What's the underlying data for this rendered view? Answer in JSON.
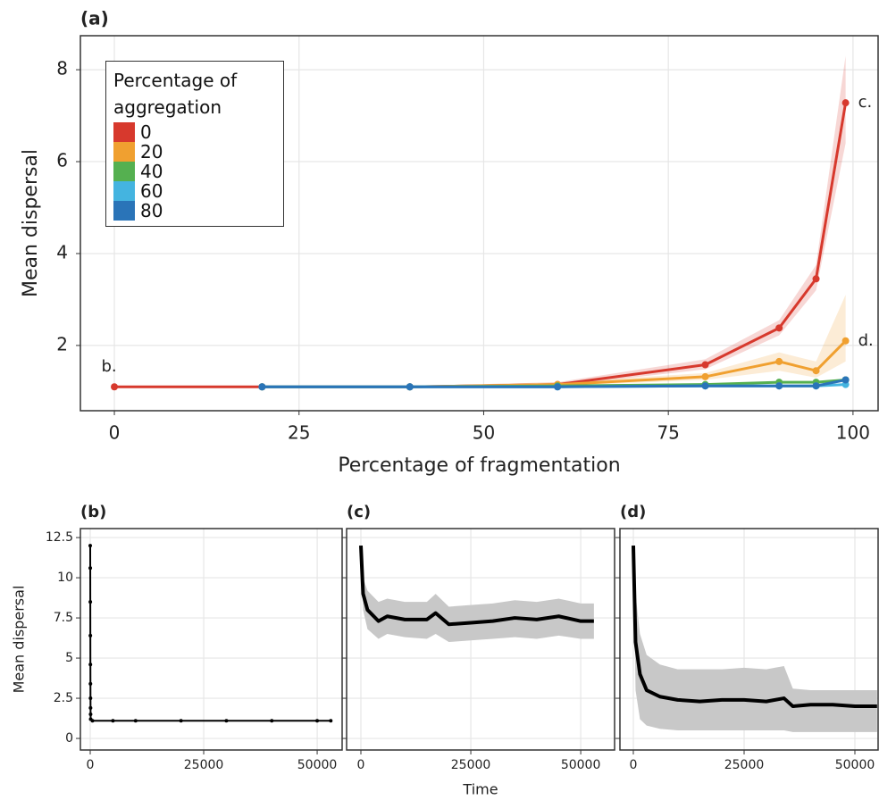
{
  "chart_data": [
    {
      "type": "line",
      "title": "(a)",
      "x_label": "Percentage of fragmentation",
      "y_label": "Mean dispersal",
      "x": [
        0,
        20,
        40,
        60,
        80,
        90,
        95,
        99
      ],
      "xlim": [
        -4.6,
        103.4
      ],
      "ylim": [
        0.58,
        8.74
      ],
      "xticks": [
        0,
        25,
        50,
        75,
        100
      ],
      "yticks": [
        2,
        4,
        6,
        8
      ],
      "grid": true,
      "legend": {
        "title": "Percentage of aggregation",
        "corner": "upper left"
      },
      "series": [
        {
          "name": "0",
          "color": "#d7392d",
          "values": [
            1.1,
            1.1,
            1.1,
            1.15,
            1.58,
            2.38,
            3.45,
            7.28
          ],
          "lower": [
            1.08,
            1.08,
            1.08,
            1.12,
            1.48,
            2.22,
            3.2,
            6.4
          ],
          "upper": [
            1.12,
            1.12,
            1.12,
            1.2,
            1.7,
            2.55,
            3.75,
            8.3
          ]
        },
        {
          "name": "20",
          "color": "#f0a030",
          "values": [
            null,
            1.1,
            1.1,
            1.15,
            1.32,
            1.65,
            1.45,
            2.1
          ],
          "lower": [
            null,
            1.08,
            1.08,
            1.12,
            1.25,
            1.45,
            1.3,
            1.65
          ],
          "upper": [
            null,
            1.12,
            1.12,
            1.2,
            1.4,
            1.85,
            1.65,
            3.1
          ]
        },
        {
          "name": "40",
          "color": "#55b050",
          "values": [
            null,
            1.1,
            1.1,
            1.12,
            1.15,
            1.2,
            1.2,
            1.25
          ]
        },
        {
          "name": "60",
          "color": "#44b4e0",
          "values": [
            null,
            1.1,
            1.1,
            1.1,
            1.12,
            1.12,
            1.12,
            1.15
          ]
        },
        {
          "name": "80",
          "color": "#2a74b8",
          "values": [
            null,
            1.1,
            1.1,
            1.1,
            1.12,
            1.12,
            1.12,
            1.25
          ]
        }
      ],
      "annotations": [
        "b.",
        "c.",
        "d."
      ]
    },
    {
      "type": "line",
      "title": "(b)",
      "y_label": "Mean dispersal",
      "color": "#000000",
      "markers": true,
      "x": [
        0,
        10,
        20,
        30,
        40,
        50,
        60,
        70,
        80,
        100,
        500,
        5000,
        10000,
        20000,
        30000,
        40000,
        50000,
        53000
      ],
      "values": [
        12,
        10.6,
        8.5,
        6.4,
        4.6,
        3.4,
        2.5,
        1.9,
        1.5,
        1.2,
        1.1,
        1.1,
        1.1,
        1.1,
        1.1,
        1.1,
        1.1,
        1.1
      ],
      "xlim": [
        -2165,
        55500
      ],
      "ylim": [
        -0.72,
        13.06
      ],
      "xticks": [
        0,
        25000,
        50000
      ],
      "yticks": [
        0,
        2.5,
        5,
        7.5,
        10,
        12.5
      ],
      "grid": true
    },
    {
      "type": "line",
      "title": "(c)",
      "x_label": "Time",
      "color": "#000000",
      "band_color": "#c8c8c8",
      "x": [
        0,
        500,
        1500,
        4000,
        6000,
        10000,
        15000,
        17000,
        20000,
        25000,
        30000,
        35000,
        40000,
        45000,
        50000,
        53000
      ],
      "values": [
        12,
        9,
        8,
        7.3,
        7.6,
        7.4,
        7.4,
        7.8,
        7.1,
        7.2,
        7.3,
        7.5,
        7.4,
        7.6,
        7.3,
        7.3
      ],
      "lower": [
        12,
        8,
        6.8,
        6.2,
        6.5,
        6.3,
        6.2,
        6.5,
        6.0,
        6.1,
        6.2,
        6.3,
        6.2,
        6.4,
        6.2,
        6.2
      ],
      "upper": [
        12,
        10,
        9.2,
        8.5,
        8.7,
        8.5,
        8.5,
        9.0,
        8.2,
        8.3,
        8.4,
        8.6,
        8.5,
        8.7,
        8.4,
        8.4
      ],
      "xlim": [
        -3250,
        57700
      ],
      "ylim": [
        -0.72,
        13.06
      ],
      "xticks": [
        0,
        25000,
        50000
      ],
      "yticks": [
        0,
        2.5,
        5,
        7.5,
        10,
        12.5
      ],
      "grid": true
    },
    {
      "type": "line",
      "title": "(d)",
      "color": "#000000",
      "band_color": "#c8c8c8",
      "x": [
        0,
        500,
        1500,
        3000,
        6000,
        10000,
        15000,
        20000,
        25000,
        30000,
        34000,
        36000,
        40000,
        45000,
        50000,
        55000
      ],
      "values": [
        12,
        6,
        4,
        3,
        2.6,
        2.4,
        2.3,
        2.4,
        2.4,
        2.3,
        2.5,
        2.0,
        2.1,
        2.1,
        2.0,
        2.0
      ],
      "lower": [
        12,
        3,
        1.2,
        0.8,
        0.6,
        0.5,
        0.5,
        0.5,
        0.5,
        0.5,
        0.5,
        0.4,
        0.4,
        0.4,
        0.4,
        0.4
      ],
      "upper": [
        12,
        9,
        6.5,
        5.2,
        4.6,
        4.3,
        4.3,
        4.3,
        4.4,
        4.3,
        4.5,
        3.1,
        3.0,
        3.0,
        3.0,
        3.0
      ],
      "xlim": [
        -3020,
        55240
      ],
      "ylim": [
        -0.72,
        13.06
      ],
      "xticks": [
        0,
        25000,
        50000
      ],
      "yticks": [
        0,
        2.5,
        5,
        7.5,
        10,
        12.5
      ],
      "grid": true
    }
  ]
}
